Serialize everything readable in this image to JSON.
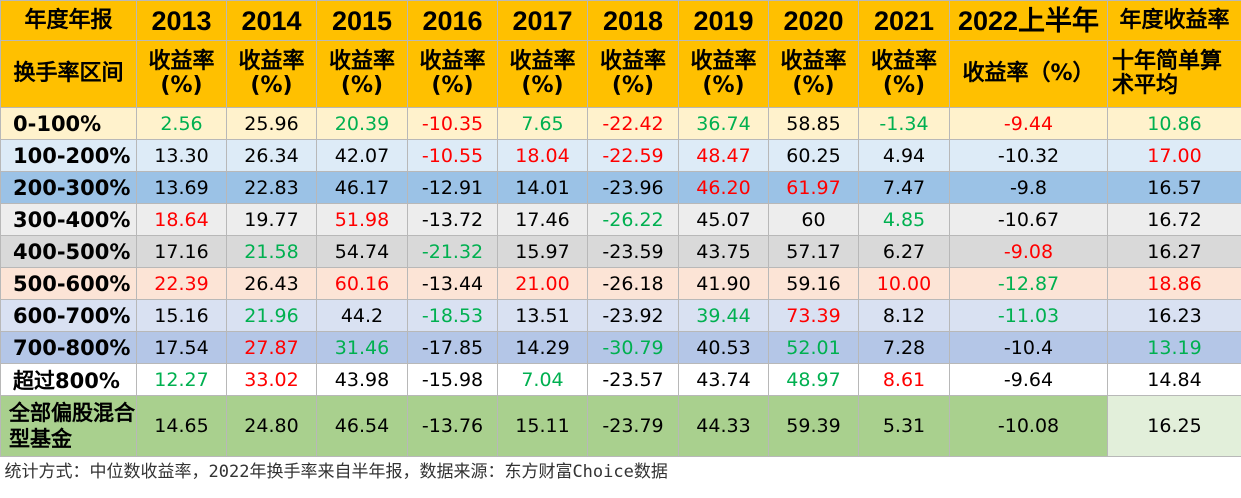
{
  "colors": {
    "header": "#ffc000",
    "red": "#ff0000",
    "green": "#00b050",
    "black": "#000000",
    "summary_bg": "#e2efda"
  },
  "header": {
    "corner_label": "年度年报",
    "years": [
      "2013",
      "2014",
      "2015",
      "2016",
      "2017",
      "2018",
      "2019",
      "2020",
      "2021",
      "2022上半年"
    ],
    "summary_title": "年度收益率",
    "row_header": "换手率区间",
    "sub_labels": [
      "收益率(%)",
      "收益率(%)",
      "收益率(%)",
      "收益率(%)",
      "收益率(%)",
      "收益率(%)",
      "收益率(%)",
      "收益率(%)",
      "收益率(%)",
      "收益率（%）"
    ],
    "summary_sub": "十年简单算术平均"
  },
  "rows": [
    {
      "label": "0-100%",
      "bg": "#fff2cc",
      "values": [
        "2.56",
        "25.96",
        "20.39",
        "-10.35",
        "7.65",
        "-22.42",
        "36.74",
        "58.85",
        "-1.34",
        "-9.44"
      ],
      "colors": [
        "green",
        "black",
        "green",
        "red",
        "green",
        "red",
        "green",
        "black",
        "green",
        "red"
      ],
      "avg": "10.86",
      "avg_color": "green"
    },
    {
      "label": "100-200%",
      "bg": "#ddebf7",
      "values": [
        "13.30",
        "26.34",
        "42.07",
        "-10.55",
        "18.04",
        "-22.59",
        "48.47",
        "60.25",
        "4.94",
        "-10.32"
      ],
      "colors": [
        "black",
        "black",
        "black",
        "red",
        "red",
        "red",
        "red",
        "black",
        "black",
        "black"
      ],
      "avg": "17.00",
      "avg_color": "red"
    },
    {
      "label": "200-300%",
      "bg": "#9bc2e6",
      "values": [
        "13.69",
        "22.83",
        "46.17",
        "-12.91",
        "14.01",
        "-23.96",
        "46.20",
        "61.97",
        "7.47",
        "-9.8"
      ],
      "colors": [
        "black",
        "black",
        "black",
        "black",
        "black",
        "black",
        "red",
        "red",
        "black",
        "black"
      ],
      "avg": "16.57",
      "avg_color": "black"
    },
    {
      "label": "300-400%",
      "bg": "#ededed",
      "values": [
        "18.64",
        "19.77",
        "51.98",
        "-13.72",
        "17.46",
        "-26.22",
        "45.07",
        "60",
        "4.85",
        "-10.67"
      ],
      "colors": [
        "red",
        "black",
        "red",
        "black",
        "black",
        "green",
        "black",
        "black",
        "green",
        "black"
      ],
      "avg": "16.72",
      "avg_color": "black"
    },
    {
      "label": "400-500%",
      "bg": "#d9d9d9",
      "values": [
        "17.16",
        "21.58",
        "54.74",
        "-21.32",
        "15.97",
        "-23.59",
        "43.75",
        "57.17",
        "6.27",
        "-9.08"
      ],
      "colors": [
        "black",
        "green",
        "black",
        "green",
        "black",
        "black",
        "black",
        "black",
        "black",
        "red"
      ],
      "avg": "16.27",
      "avg_color": "black"
    },
    {
      "label": "500-600%",
      "bg": "#fce4d6",
      "values": [
        "22.39",
        "26.43",
        "60.16",
        "-13.44",
        "21.00",
        "-26.18",
        "41.90",
        "59.16",
        "10.00",
        "-12.87"
      ],
      "colors": [
        "red",
        "black",
        "red",
        "black",
        "red",
        "black",
        "black",
        "black",
        "red",
        "green"
      ],
      "avg": "18.86",
      "avg_color": "red"
    },
    {
      "label": "600-700%",
      "bg": "#d9e1f2",
      "values": [
        "15.16",
        "21.96",
        "44.2",
        "-18.53",
        "13.51",
        "-23.92",
        "39.44",
        "73.39",
        "8.12",
        "-11.03"
      ],
      "colors": [
        "black",
        "green",
        "black",
        "green",
        "black",
        "black",
        "green",
        "red",
        "black",
        "green"
      ],
      "avg": "16.23",
      "avg_color": "black"
    },
    {
      "label": "700-800%",
      "bg": "#b4c6e7",
      "values": [
        "17.54",
        "27.87",
        "31.46",
        "-17.85",
        "14.29",
        "-30.79",
        "40.53",
        "52.01",
        "7.28",
        "-10.4"
      ],
      "colors": [
        "black",
        "red",
        "green",
        "black",
        "black",
        "green",
        "black",
        "green",
        "black",
        "black"
      ],
      "avg": "13.19",
      "avg_color": "green"
    },
    {
      "label": "超过800%",
      "bg": "#ffffff",
      "values": [
        "12.27",
        "33.02",
        "43.98",
        "-15.98",
        "7.04",
        "-23.57",
        "43.74",
        "48.97",
        "8.61",
        "-9.64"
      ],
      "colors": [
        "green",
        "red",
        "black",
        "black",
        "green",
        "black",
        "black",
        "green",
        "red",
        "black"
      ],
      "avg": "14.84",
      "avg_color": "black"
    }
  ],
  "total_row": {
    "label": "全部偏股混合型基金",
    "bg": "#a9d08e",
    "values": [
      "14.65",
      "24.80",
      "46.54",
      "-13.76",
      "15.11",
      "-23.79",
      "44.33",
      "59.39",
      "5.31",
      "-10.08"
    ],
    "avg": "16.25"
  },
  "footnote": "统计方式：中位数收益率，2022年换手率来自半年报，数据来源：东方财富Choice数据"
}
